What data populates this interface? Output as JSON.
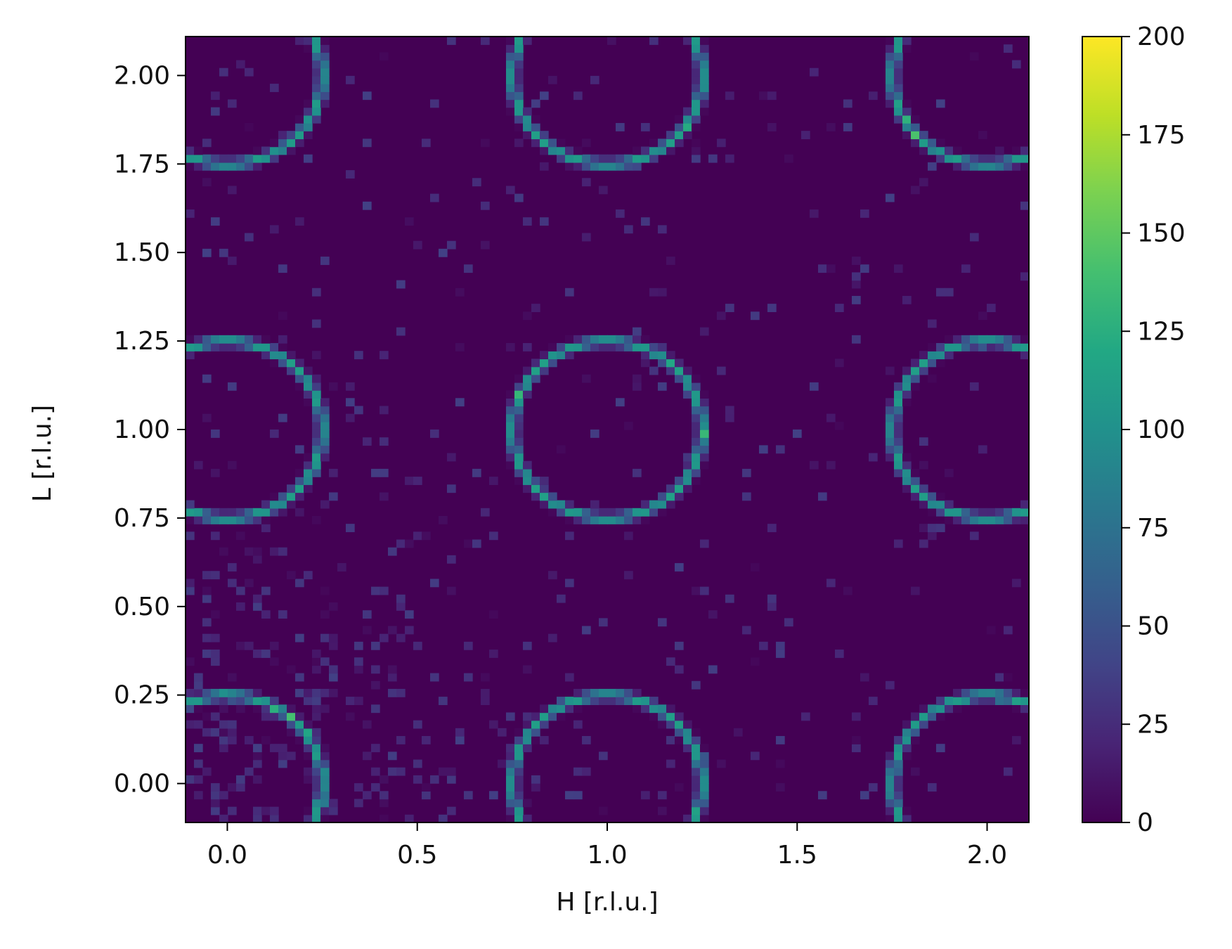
{
  "chart_data": {
    "type": "heatmap",
    "title": "",
    "xlabel": "H [r.l.u.]",
    "ylabel": "L [r.l.u.]",
    "xlim": [
      -0.11,
      2.11
    ],
    "ylim": [
      -0.11,
      2.11
    ],
    "x_ticks": [
      0.0,
      0.5,
      1.0,
      1.5,
      2.0
    ],
    "x_tick_labels": [
      "0.0",
      "0.5",
      "1.0",
      "1.5",
      "2.0"
    ],
    "y_ticks": [
      0.0,
      0.25,
      0.5,
      0.75,
      1.0,
      1.25,
      1.5,
      1.75,
      2.0
    ],
    "y_tick_labels": [
      "0.00",
      "0.25",
      "0.50",
      "0.75",
      "1.00",
      "1.25",
      "1.50",
      "1.75",
      "2.00"
    ],
    "colormap": "viridis",
    "colorbar": {
      "range": [
        0,
        200
      ],
      "ticks": [
        0,
        25,
        50,
        75,
        100,
        125,
        150,
        175,
        200
      ],
      "tick_labels": [
        "0",
        "25",
        "50",
        "75",
        "100",
        "125",
        "150",
        "175",
        "200"
      ]
    },
    "grid": false,
    "background_intensity": 0,
    "noise_region": "low H / low L corner, intensity up to about 40",
    "rings": {
      "radius": 0.25,
      "ring_intensity": 115,
      "centers": [
        {
          "H": 0,
          "L": 0
        },
        {
          "H": 1,
          "L": 0
        },
        {
          "H": 2,
          "L": 0
        },
        {
          "H": 0,
          "L": 1
        },
        {
          "H": 1,
          "L": 1
        },
        {
          "H": 2,
          "L": 1
        },
        {
          "H": 0,
          "L": 2
        },
        {
          "H": 1,
          "L": 2
        },
        {
          "H": 2,
          "L": 2
        }
      ]
    }
  }
}
